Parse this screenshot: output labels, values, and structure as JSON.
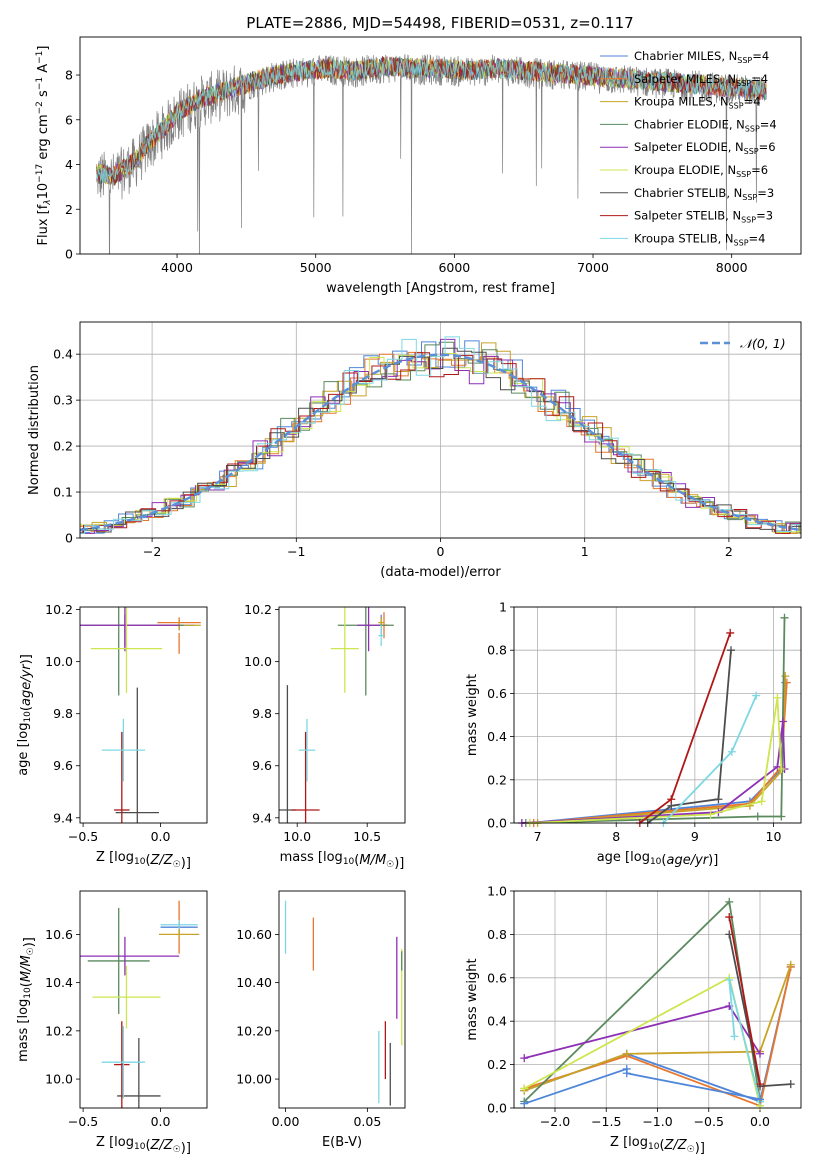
{
  "figure": {
    "title": "PLATE=2886, MJD=54498, FIBERID=0531, z=0.117"
  },
  "models": [
    {
      "name": "Chabrier MILES, N$_{SSP}$=4",
      "label_main": "Chabrier MILES, N",
      "label_sub": "SSP",
      "label_end": "=4",
      "color": "#4f86d9"
    },
    {
      "name": "Salpeter MILES, N$_{SSP}$=4",
      "label_main": "Salpeter MILES, N",
      "label_sub": "SSP",
      "label_end": "=4",
      "color": "#e8772e"
    },
    {
      "name": "Kroupa MILES, N$_{SSP}$=4",
      "label_main": "Kroupa MILES, N",
      "label_sub": "SSP",
      "label_end": "=4",
      "color": "#c9a227"
    },
    {
      "name": "Chabrier ELODIE, N$_{SSP}$=4",
      "label_main": "Chabrier ELODIE, N",
      "label_sub": "SSP",
      "label_end": "=4",
      "color": "#5a8a5e"
    },
    {
      "name": "Salpeter ELODIE, N$_{SSP}$=6",
      "label_main": "Salpeter ELODIE, N",
      "label_sub": "SSP",
      "label_end": "=6",
      "color": "#8e2fb5"
    },
    {
      "name": "Kroupa ELODIE, N$_{SSP}$=6",
      "label_main": "Kroupa ELODIE, N",
      "label_sub": "SSP",
      "label_end": "=6",
      "color": "#cde64f"
    },
    {
      "name": "Chabrier STELIB, N$_{SSP}$=3",
      "label_main": "Chabrier STELIB, N",
      "label_sub": "SSP",
      "label_end": "=3",
      "color": "#4d4d4d"
    },
    {
      "name": "Salpeter STELIB, N$_{SSP}$=3",
      "label_main": "Salpeter STELIB, N",
      "label_sub": "SSP",
      "label_end": "=3",
      "color": "#b01818"
    },
    {
      "name": "Kroupa STELIB, N$_{SSP}$=4",
      "label_main": "Kroupa STELIB, N",
      "label_sub": "SSP",
      "label_end": "=4",
      "color": "#7ed8e3"
    }
  ],
  "chart_data": [
    {
      "id": "spectrum",
      "type": "line",
      "xlabel": "wavelength [Angstrom, rest frame]",
      "ylabel_main": "Flux [f",
      "ylabel_rest": "10",
      "ylabel_full": "Flux [f$_\\lambda$10$^{-17}$ erg cm$^{-2}$ s$^{-1}$ A$^{-1}$]",
      "xlim": [
        3300,
        8500
      ],
      "ylim": [
        0,
        9.7
      ],
      "xticks": [
        4000,
        5000,
        6000,
        7000,
        8000
      ],
      "yticks": [
        0,
        2,
        4,
        6,
        8
      ],
      "grid": false,
      "legend": "right",
      "observed_color": "#808080",
      "continuum": [
        [
          3420,
          3.6
        ],
        [
          3550,
          3.5
        ],
        [
          3700,
          4.2
        ],
        [
          3800,
          5.0
        ],
        [
          3900,
          5.6
        ],
        [
          4000,
          6.3
        ],
        [
          4150,
          6.9
        ],
        [
          4300,
          7.2
        ],
        [
          4500,
          7.6
        ],
        [
          4700,
          8.0
        ],
        [
          4900,
          8.2
        ],
        [
          5100,
          8.3
        ],
        [
          5300,
          8.2
        ],
        [
          5500,
          8.4
        ],
        [
          5700,
          8.3
        ],
        [
          5900,
          8.3
        ],
        [
          6100,
          8.2
        ],
        [
          6300,
          8.3
        ],
        [
          6500,
          8.2
        ],
        [
          6700,
          8.1
        ],
        [
          6900,
          8.0
        ],
        [
          7100,
          7.9
        ],
        [
          7300,
          7.8
        ],
        [
          7500,
          7.7
        ],
        [
          7700,
          7.6
        ],
        [
          7900,
          7.5
        ],
        [
          8100,
          7.4
        ],
        [
          8250,
          7.3
        ]
      ]
    },
    {
      "id": "residuals",
      "type": "histogram",
      "xlabel": "(data-model)/error",
      "ylabel": "Normed distribution",
      "xlim": [
        -2.5,
        2.5
      ],
      "ylim": [
        0,
        0.47
      ],
      "xticks": [
        -2,
        -1,
        0,
        1,
        2
      ],
      "yticks": [
        0.0,
        0.1,
        0.2,
        0.3,
        0.4
      ],
      "grid": true,
      "legend": "top-right",
      "reference_label": "𝒩(0, 1)",
      "reference_color": "#5b8fd6"
    },
    {
      "id": "age-vs-Z",
      "type": "scatter",
      "xlabel": "Z [log10(Z/Z☉)]",
      "ylabel": "age  [log10(age/yr)]",
      "xlim": [
        -0.52,
        0.3
      ],
      "ylim": [
        9.38,
        10.21
      ],
      "xticks": [
        -0.5,
        0.0
      ],
      "yticks": [
        9.4,
        9.6,
        9.8,
        10.0,
        10.2
      ],
      "grid": false,
      "errorbars": [
        {
          "m": 0,
          "x": 0.12,
          "xe": 0.1,
          "y": 10.14,
          "ye": 0.02
        },
        {
          "m": 1,
          "x": 0.12,
          "xe": 0.14,
          "y": 10.15,
          "ye": 0.02
        },
        {
          "m": 2,
          "x": 0.12,
          "xe": 0.14,
          "y": 10.14,
          "ye": 0.02
        },
        {
          "m": 3,
          "x": -0.27,
          "xe": 0.42,
          "y": 10.14,
          "ye": 0.27
        },
        {
          "m": 4,
          "x": -0.23,
          "xe": 0.35,
          "y": 10.14,
          "ye": 0.1
        },
        {
          "m": 5,
          "x": -0.22,
          "xe": 0.23,
          "y": 10.05,
          "ye": 0.17
        },
        {
          "m": 6,
          "x": -0.15,
          "xe": 0.14,
          "y": 9.42,
          "ye": 0.48
        },
        {
          "m": 7,
          "x": -0.25,
          "xe": 0.05,
          "y": 9.43,
          "ye": 0.3
        },
        {
          "m": 8,
          "x": -0.24,
          "xe": 0.14,
          "y": 9.66,
          "ye": 0.12
        },
        {
          "m": 1,
          "x": 0.12,
          "xe": 0.0,
          "y": 10.07,
          "ye": 0.04
        },
        {
          "m": 4,
          "x": -0.23,
          "xe": 0.0,
          "y": 10.12,
          "ye": 0.06
        }
      ]
    },
    {
      "id": "age-vs-mass",
      "type": "scatter",
      "xlabel": "mass [log10(M/M☉)]",
      "ylabel": "",
      "xlim": [
        9.87,
        10.77
      ],
      "ylim": [
        9.38,
        10.21
      ],
      "xticks": [
        10.0,
        10.5
      ],
      "yticks": [
        9.4,
        9.6,
        9.8,
        10.0,
        10.2
      ],
      "grid": false,
      "errorbars": [
        {
          "m": 0,
          "x": 10.6,
          "xe": 0.03,
          "y": 10.14,
          "ye": 0.04
        },
        {
          "m": 1,
          "x": 10.62,
          "xe": 0.03,
          "y": 10.14,
          "ye": 0.05
        },
        {
          "m": 2,
          "x": 10.6,
          "xe": 0.02,
          "y": 10.15,
          "ye": 0.02
        },
        {
          "m": 3,
          "x": 10.49,
          "xe": 0.2,
          "y": 10.14,
          "ye": 0.27
        },
        {
          "m": 4,
          "x": 10.51,
          "xe": 0.08,
          "y": 10.14,
          "ye": 0.1
        },
        {
          "m": 5,
          "x": 10.34,
          "xe": 0.1,
          "y": 10.05,
          "ye": 0.17
        },
        {
          "m": 6,
          "x": 9.93,
          "xe": 0.06,
          "y": 9.43,
          "ye": 0.48
        },
        {
          "m": 7,
          "x": 10.06,
          "xe": 0.1,
          "y": 9.43,
          "ye": 0.3
        },
        {
          "m": 8,
          "x": 10.07,
          "xe": 0.06,
          "y": 9.66,
          "ye": 0.12
        },
        {
          "m": 8,
          "x": 10.6,
          "xe": 0.02,
          "y": 10.1,
          "ye": 0.04
        }
      ]
    },
    {
      "id": "weight-vs-age",
      "type": "line",
      "xlabel": "age  [log10(age/yr)]",
      "ylabel": "mass weight",
      "xlim": [
        6.7,
        10.35
      ],
      "ylim": [
        0,
        1.0
      ],
      "xticks": [
        7,
        8,
        9,
        10
      ],
      "yticks": [
        0.0,
        0.2,
        0.4,
        0.6,
        0.8,
        1.0
      ],
      "grid": true,
      "series": [
        {
          "m": 0,
          "points": [
            [
              6.9,
              0.0
            ],
            [
              9.7,
              0.1
            ],
            [
              10.1,
              0.25
            ],
            [
              10.15,
              0.65
            ]
          ]
        },
        {
          "m": 1,
          "points": [
            [
              6.95,
              0.0
            ],
            [
              9.7,
              0.09
            ],
            [
              10.1,
              0.26
            ],
            [
              10.17,
              0.65
            ]
          ]
        },
        {
          "m": 2,
          "points": [
            [
              7.0,
              0.0
            ],
            [
              9.7,
              0.08
            ],
            [
              10.1,
              0.24
            ],
            [
              10.15,
              0.68
            ]
          ]
        },
        {
          "m": 3,
          "points": [
            [
              6.85,
              0.0
            ],
            [
              9.8,
              0.03
            ],
            [
              10.1,
              0.03
            ],
            [
              10.14,
              0.95
            ]
          ]
        },
        {
          "m": 4,
          "points": [
            [
              6.8,
              0.0
            ],
            [
              9.3,
              0.05
            ],
            [
              10.05,
              0.26
            ],
            [
              10.12,
              0.47
            ],
            [
              10.14,
              0.25
            ]
          ]
        },
        {
          "m": 5,
          "points": [
            [
              6.9,
              0.0
            ],
            [
              9.2,
              0.04
            ],
            [
              9.85,
              0.1
            ],
            [
              10.05,
              0.58
            ],
            [
              10.1,
              0.25
            ]
          ]
        },
        {
          "m": 6,
          "points": [
            [
              8.4,
              0.0
            ],
            [
              8.7,
              0.08
            ],
            [
              9.3,
              0.11
            ],
            [
              9.46,
              0.8
            ]
          ]
        },
        {
          "m": 7,
          "points": [
            [
              8.3,
              0.0
            ],
            [
              8.7,
              0.11
            ],
            [
              9.45,
              0.88
            ]
          ]
        },
        {
          "m": 8,
          "points": [
            [
              8.6,
              0.0
            ],
            [
              9.47,
              0.33
            ],
            [
              9.78,
              0.59
            ]
          ]
        }
      ]
    },
    {
      "id": "mass-vs-Z",
      "type": "scatter",
      "xlabel": "Z [log10(Z/Z☉)]",
      "ylabel": "mass [log10(M/M☉)]",
      "xlim": [
        -0.52,
        0.3
      ],
      "ylim": [
        9.88,
        10.78
      ],
      "xticks": [
        -0.5,
        0.0
      ],
      "yticks": [
        10.0,
        10.2,
        10.4,
        10.6
      ],
      "grid": false,
      "errorbars": [
        {
          "m": 0,
          "x": 0.12,
          "xe": 0.12,
          "y": 10.63,
          "ye": 0.02
        },
        {
          "m": 1,
          "x": 0.12,
          "xe": 0.0,
          "y": 10.63,
          "ye": 0.11
        },
        {
          "m": 2,
          "x": 0.12,
          "xe": 0.13,
          "y": 10.6,
          "ye": 0.02
        },
        {
          "m": 3,
          "x": -0.27,
          "xe": 0.2,
          "y": 10.49,
          "ye": 0.22
        },
        {
          "m": 4,
          "x": -0.23,
          "xe": 0.35,
          "y": 10.51,
          "ye": 0.08
        },
        {
          "m": 5,
          "x": -0.22,
          "xe": 0.22,
          "y": 10.34,
          "ye": 0.13
        },
        {
          "m": 6,
          "x": -0.14,
          "xe": 0.14,
          "y": 9.93,
          "ye": 0.24
        },
        {
          "m": 7,
          "x": -0.25,
          "xe": 0.05,
          "y": 10.06,
          "ye": 0.18
        },
        {
          "m": 8,
          "x": -0.24,
          "xe": 0.14,
          "y": 10.07,
          "ye": 0.15
        },
        {
          "m": 8,
          "x": 0.12,
          "xe": 0.12,
          "y": 10.64,
          "ye": 0.02
        }
      ]
    },
    {
      "id": "mass-vs-ebv",
      "type": "scatter",
      "xlabel": "E(B-V)",
      "ylabel": "",
      "xlim": [
        -0.004,
        0.073
      ],
      "ylim": [
        9.88,
        10.78
      ],
      "xticks": [
        0.0,
        0.05
      ],
      "yticks": [
        10.0,
        10.2,
        10.4,
        10.6
      ],
      "grid": false,
      "errorbars": [
        {
          "m": 8,
          "x": 0.0,
          "xe": 0.0,
          "y": 10.63,
          "ye": 0.11
        },
        {
          "m": 1,
          "x": 0.017,
          "xe": 0.0,
          "y": 10.56,
          "ye": 0.11
        },
        {
          "m": 4,
          "x": 0.068,
          "xe": 0.0,
          "y": 10.42,
          "ye": 0.17
        },
        {
          "m": 5,
          "x": 0.071,
          "xe": 0.0,
          "y": 10.34,
          "ye": 0.2
        },
        {
          "m": 3,
          "x": 0.071,
          "xe": 0.0,
          "y": 10.49,
          "ye": 0.04
        },
        {
          "m": 7,
          "x": 0.061,
          "xe": 0.0,
          "y": 10.12,
          "ye": 0.12
        },
        {
          "m": 8,
          "x": 0.057,
          "xe": 0.0,
          "y": 10.05,
          "ye": 0.15
        },
        {
          "m": 6,
          "x": 0.064,
          "xe": 0.0,
          "y": 10.02,
          "ye": 0.13
        }
      ]
    },
    {
      "id": "weight-vs-Z",
      "type": "line",
      "xlabel": "Z [log10(Z/Z☉)]",
      "ylabel": "mass weight",
      "xlim": [
        -2.4,
        0.4
      ],
      "ylim": [
        0,
        1.0
      ],
      "xticks": [
        -2.0,
        -1.5,
        -1.0,
        -0.5,
        0.0
      ],
      "yticks": [
        0.0,
        0.2,
        0.4,
        0.6,
        0.8,
        1.0
      ],
      "grid": true,
      "series": [
        {
          "m": 0,
          "points": [
            [
              -2.3,
              0.08
            ],
            [
              -1.3,
              0.25
            ],
            [
              0.0,
              0.03
            ],
            [
              0.3,
              0.65
            ]
          ]
        },
        {
          "m": 1,
          "points": [
            [
              -2.3,
              0.09
            ],
            [
              -1.3,
              0.24
            ],
            [
              0.0,
              0.01
            ],
            [
              0.3,
              0.65
            ]
          ]
        },
        {
          "m": 2,
          "points": [
            [
              -2.3,
              0.08
            ],
            [
              -1.3,
              0.25
            ],
            [
              0.0,
              0.26
            ],
            [
              0.3,
              0.66
            ]
          ]
        },
        {
          "m": 3,
          "points": [
            [
              -2.3,
              0.03
            ],
            [
              -0.3,
              0.95
            ],
            [
              0.0,
              0.03
            ]
          ]
        },
        {
          "m": 4,
          "points": [
            [
              -2.3,
              0.23
            ],
            [
              -0.3,
              0.47
            ],
            [
              0.0,
              0.25
            ]
          ]
        },
        {
          "m": 5,
          "points": [
            [
              -2.3,
              0.09
            ],
            [
              -0.3,
              0.6
            ],
            [
              0.0,
              0.01
            ]
          ]
        },
        {
          "m": 6,
          "points": [
            [
              -0.3,
              0.8
            ],
            [
              0.0,
              0.1
            ],
            [
              0.3,
              0.11
            ]
          ]
        },
        {
          "m": 7,
          "points": [
            [
              -0.3,
              0.88
            ],
            [
              0.0,
              0.11
            ]
          ]
        },
        {
          "m": 8,
          "points": [
            [
              -0.25,
              0.33
            ],
            [
              -0.3,
              0.59
            ],
            [
              0.0,
              0.03
            ]
          ]
        },
        {
          "m": 0,
          "points": [
            [
              -2.3,
              0.02
            ],
            [
              -1.3,
              0.18
            ],
            [
              -1.3,
              0.16
            ],
            [
              0.0,
              0.04
            ]
          ]
        }
      ]
    }
  ]
}
